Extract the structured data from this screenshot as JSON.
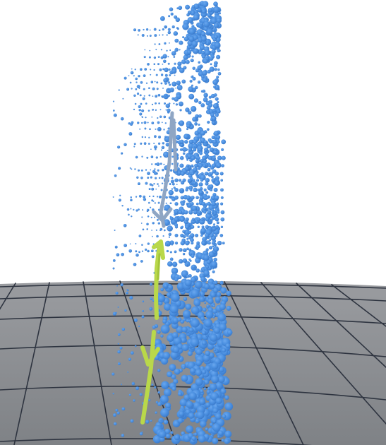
{
  "scene": {
    "colors": {
      "background": "#ffffff",
      "floor_far": "#9a9ca0",
      "floor_near": "#7f8286",
      "grid_line": "#2e3440",
      "particles": "#4a8fe0",
      "particles_dark": "#3a78c8",
      "particles_light": "#6aa7ee",
      "trajectory_upper": "#8fa6c4",
      "trajectory_lower": "#b9d84a",
      "trajectory_lower_dark": "#a3c43a"
    },
    "objects": {
      "particle_cloud": "blue-particle-cloud",
      "path_upper": "gray-trajectory-segment",
      "path_lower": "lime-trajectory-segment",
      "floor": "ground-grid-plane"
    }
  }
}
